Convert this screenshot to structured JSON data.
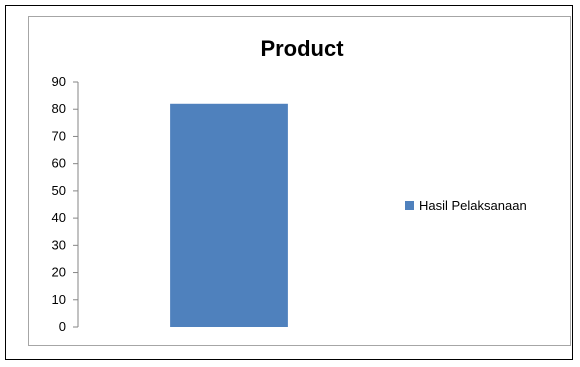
{
  "chart_data": {
    "type": "bar",
    "title": "Product",
    "categories": [
      ""
    ],
    "series": [
      {
        "name": "Hasil Pelaksanaan",
        "values": [
          82
        ],
        "color": "#4f81bd"
      }
    ],
    "ylim": [
      0,
      90
    ],
    "yticks": [
      0,
      10,
      20,
      30,
      40,
      50,
      60,
      70,
      80,
      90
    ],
    "xlabel": "",
    "ylabel": "",
    "grid": false,
    "legend_position": "right"
  }
}
